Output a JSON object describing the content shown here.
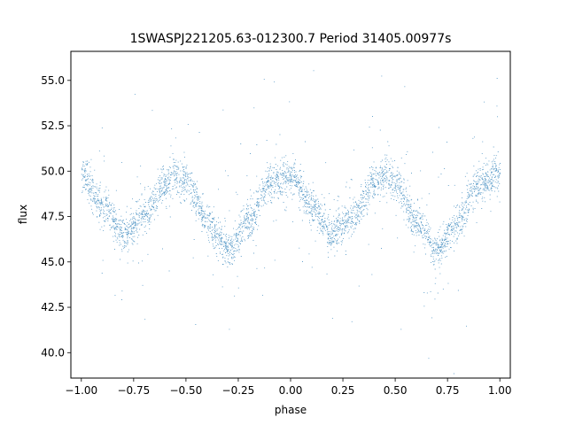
{
  "chart_data": {
    "type": "scatter",
    "title": "1SWASPJ221205.63-012300.7 Period 31405.00977s",
    "xlabel": "phase",
    "ylabel": "flux",
    "xlim": [
      -1.05,
      1.05
    ],
    "ylim": [
      38.6,
      56.6
    ],
    "x_ticks": [
      -1.0,
      -0.75,
      -0.5,
      -0.25,
      0.0,
      0.25,
      0.5,
      0.75,
      1.0
    ],
    "x_tick_labels": [
      "−1.00",
      "−0.75",
      "−0.50",
      "−0.25",
      "0.00",
      "0.25",
      "0.50",
      "0.75",
      "1.00"
    ],
    "y_ticks": [
      40.0,
      42.5,
      45.0,
      47.5,
      50.0,
      52.5,
      55.0
    ],
    "y_tick_labels": [
      "40.0",
      "42.5",
      "45.0",
      "47.5",
      "50.0",
      "52.5",
      "55.0"
    ],
    "grid": false,
    "marker_color": "#1f77b4",
    "series": [
      {
        "description_of_shape": "folded light curve shown twice over phase -1..1",
        "phase": [
          -1.0,
          -0.9,
          -0.8,
          -0.7,
          -0.6,
          -0.55,
          -0.5,
          -0.4,
          -0.3,
          -0.2,
          -0.1,
          0.0,
          0.1,
          0.2,
          0.3,
          0.4,
          0.45,
          0.5,
          0.6,
          0.7,
          0.8,
          0.9,
          1.0
        ],
        "flux_mean": [
          49.8,
          48.0,
          46.5,
          47.6,
          49.3,
          49.8,
          49.4,
          47.2,
          45.6,
          47.3,
          49.3,
          49.8,
          48.0,
          46.5,
          47.6,
          49.3,
          49.8,
          49.4,
          47.2,
          45.6,
          47.3,
          49.3,
          49.8
        ],
        "band_halfwidth": 0.9
      }
    ]
  }
}
